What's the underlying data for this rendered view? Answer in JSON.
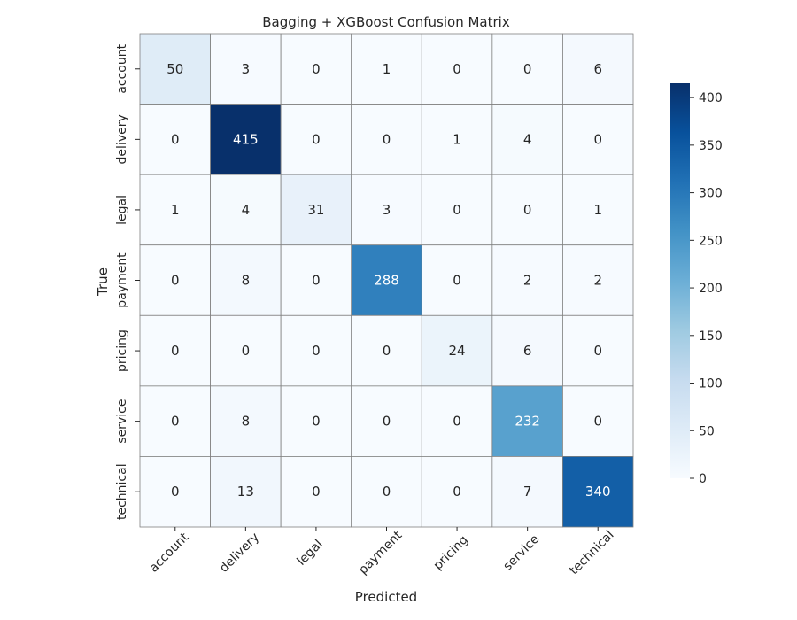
{
  "chart_data": {
    "type": "heatmap",
    "title": "Bagging + XGBoost  Confusion Matrix",
    "xlabel": "Predicted",
    "ylabel": "True",
    "x_categories": [
      "account",
      "delivery",
      "legal",
      "payment",
      "pricing",
      "service",
      "technical"
    ],
    "y_categories": [
      "account",
      "delivery",
      "legal",
      "payment",
      "pricing",
      "service",
      "technical"
    ],
    "values": [
      [
        50,
        3,
        0,
        1,
        0,
        0,
        6
      ],
      [
        0,
        415,
        0,
        0,
        1,
        4,
        0
      ],
      [
        1,
        4,
        31,
        3,
        0,
        0,
        1
      ],
      [
        0,
        8,
        0,
        288,
        0,
        2,
        2
      ],
      [
        0,
        0,
        0,
        0,
        24,
        6,
        0
      ],
      [
        0,
        8,
        0,
        0,
        0,
        232,
        0
      ],
      [
        0,
        13,
        0,
        0,
        0,
        7,
        340
      ]
    ],
    "colormap": "Blues",
    "color_range": [
      0,
      415
    ],
    "colorbar_ticks": [
      0,
      50,
      100,
      150,
      200,
      250,
      300,
      350,
      400
    ],
    "annotations": true,
    "grid_line_color": "#808080"
  }
}
